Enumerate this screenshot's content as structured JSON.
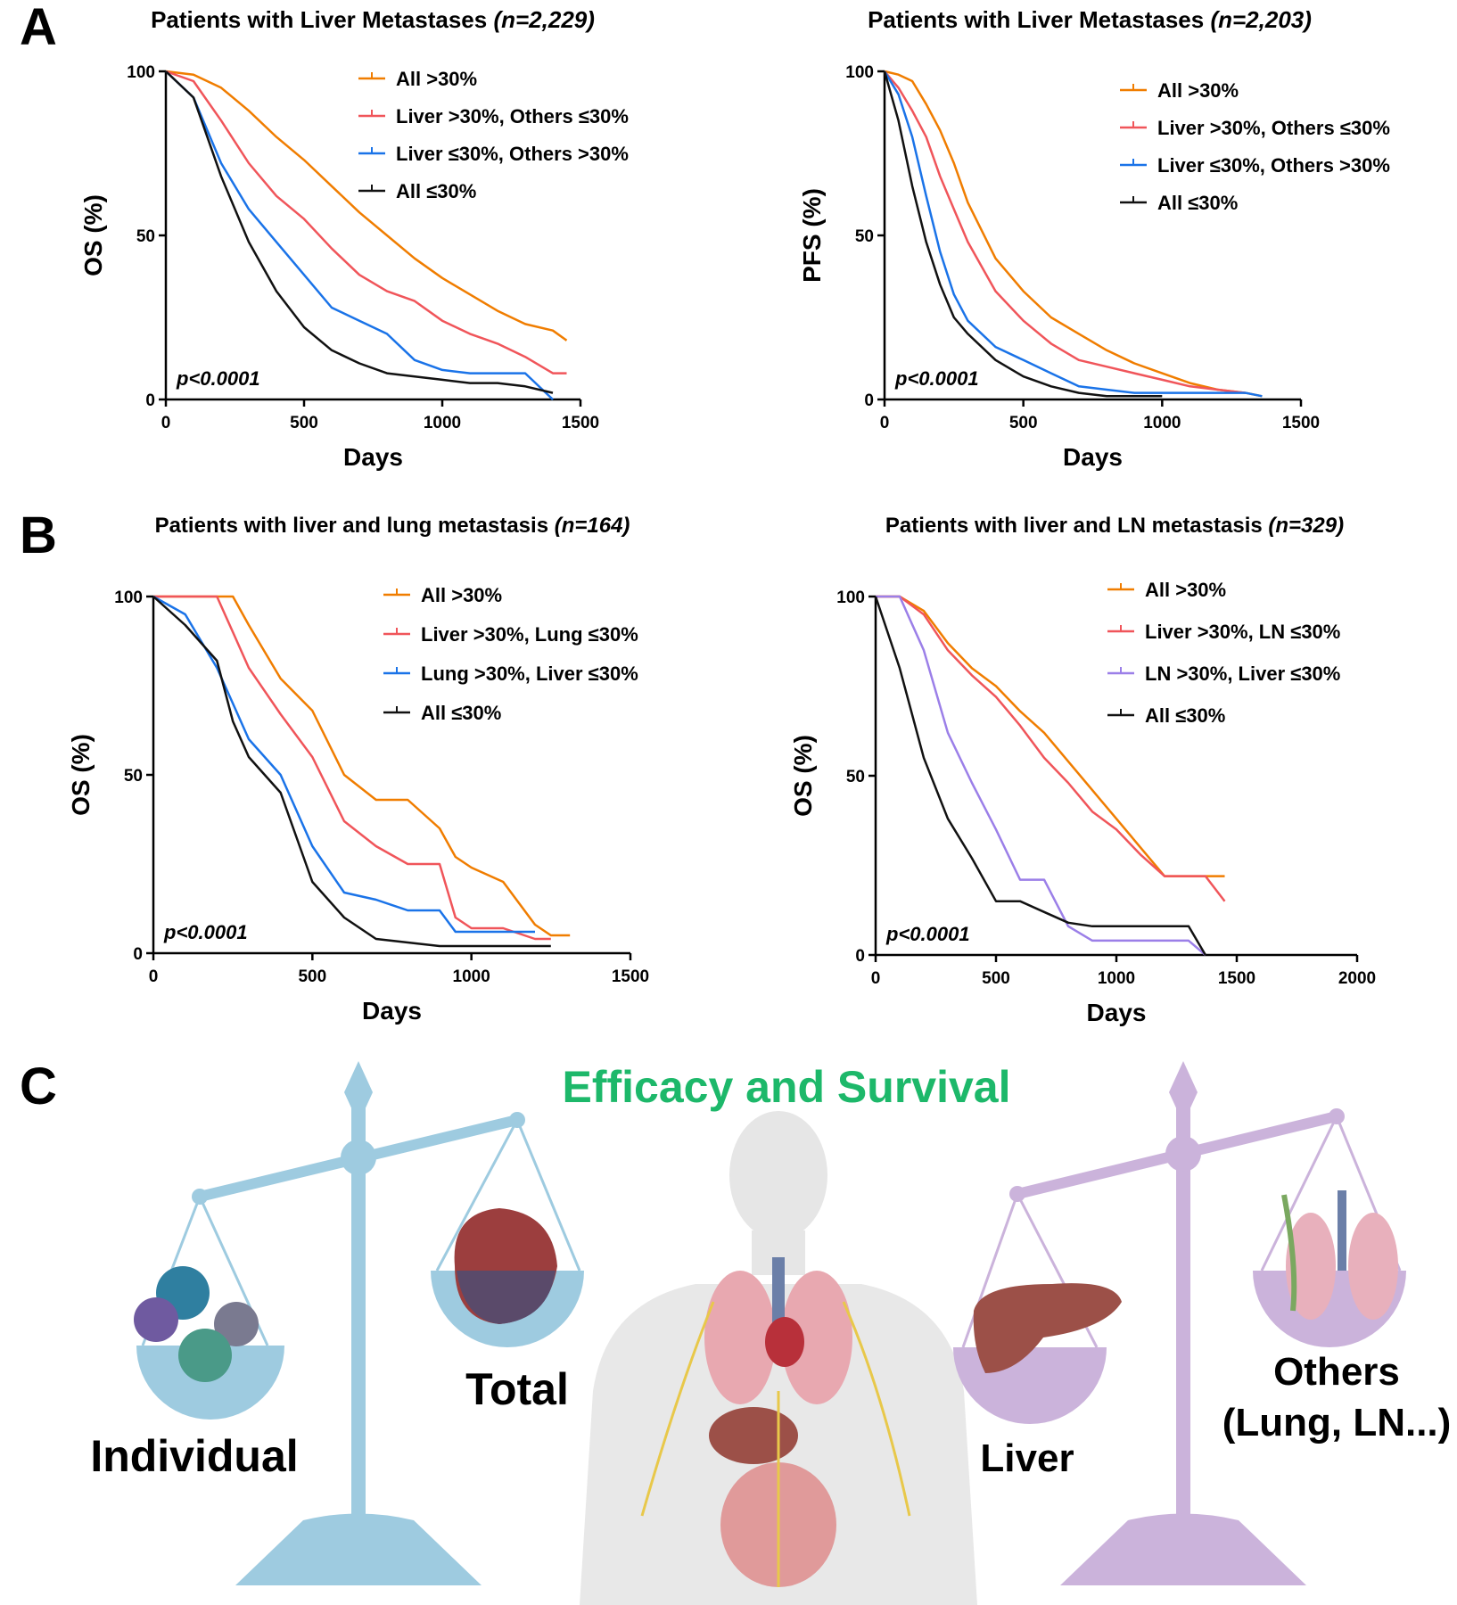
{
  "chart_data": [
    {
      "type": "line",
      "title": "Patients with Liver Metastases",
      "subtitle": "(n=2,229)",
      "xlabel": "Days",
      "ylabel": "OS (%)",
      "annotation": "p<0.0001",
      "x": [
        0,
        100,
        200,
        300,
        400,
        500,
        600,
        700,
        800,
        900,
        1000,
        1100,
        1200,
        1300,
        1400,
        1450
      ],
      "series": [
        {
          "name": "All >30%",
          "color": "#f07d00",
          "values": [
            100,
            99,
            95,
            88,
            80,
            73,
            65,
            57,
            50,
            43,
            37,
            32,
            27,
            23,
            21,
            18
          ]
        },
        {
          "name": "Liver >30%, Others ≤30%",
          "color": "#f0555a",
          "values": [
            100,
            97,
            85,
            72,
            62,
            55,
            46,
            38,
            33,
            30,
            24,
            20,
            17,
            13,
            8,
            8
          ]
        },
        {
          "name": "Liver ≤30%, Others >30%",
          "color": "#1a73e8",
          "values": [
            100,
            92,
            72,
            58,
            48,
            38,
            28,
            24,
            20,
            12,
            9,
            8,
            8,
            8,
            0,
            null
          ]
        },
        {
          "name": "All ≤30%",
          "color": "#111111",
          "values": [
            100,
            92,
            68,
            48,
            33,
            22,
            15,
            11,
            8,
            7,
            6,
            5,
            5,
            4,
            2,
            null
          ]
        }
      ],
      "xlim": [
        0,
        1500
      ],
      "ylim": [
        0,
        100
      ],
      "xticks": [
        0,
        500,
        1000,
        1500
      ],
      "yticks": [
        0,
        50,
        100
      ]
    },
    {
      "type": "line",
      "title": "Patients with Liver Metastases",
      "subtitle": "(n=2,203)",
      "xlabel": "Days",
      "ylabel": "PFS (%)",
      "annotation": "p<0.0001",
      "x": [
        0,
        50,
        100,
        150,
        200,
        250,
        300,
        400,
        500,
        600,
        700,
        800,
        900,
        1000,
        1100,
        1200,
        1300,
        1360
      ],
      "series": [
        {
          "name": "All >30%",
          "color": "#f07d00",
          "values": [
            100,
            99,
            97,
            90,
            82,
            72,
            60,
            43,
            33,
            25,
            20,
            15,
            11,
            8,
            5,
            3,
            2,
            1
          ]
        },
        {
          "name": "Liver >30%, Others ≤30%",
          "color": "#f0555a",
          "values": [
            100,
            95,
            88,
            80,
            68,
            58,
            48,
            33,
            24,
            17,
            12,
            10,
            8,
            6,
            4,
            3,
            2,
            null
          ]
        },
        {
          "name": "Liver ≤30%, Others >30%",
          "color": "#1a73e8",
          "values": [
            100,
            93,
            80,
            62,
            45,
            32,
            24,
            16,
            12,
            8,
            4,
            3,
            2,
            2,
            2,
            2,
            2,
            1
          ]
        },
        {
          "name": "All ≤30%",
          "color": "#111111",
          "values": [
            100,
            85,
            65,
            48,
            35,
            25,
            20,
            12,
            7,
            4,
            2,
            1,
            1,
            1,
            null,
            null,
            null,
            null
          ]
        }
      ],
      "xlim": [
        0,
        1500
      ],
      "ylim": [
        0,
        100
      ],
      "xticks": [
        0,
        500,
        1000,
        1500
      ],
      "yticks": [
        0,
        50,
        100
      ]
    },
    {
      "type": "line",
      "title": "Patients with liver and lung metastasis",
      "subtitle": "(n=164)",
      "xlabel": "Days",
      "ylabel": "OS (%)",
      "annotation": "p<0.0001",
      "x": [
        0,
        100,
        200,
        250,
        300,
        400,
        500,
        600,
        700,
        800,
        900,
        950,
        1000,
        1100,
        1200,
        1250,
        1310
      ],
      "series": [
        {
          "name": "All >30%",
          "color": "#f07d00",
          "values": [
            100,
            100,
            100,
            100,
            92,
            77,
            68,
            50,
            43,
            43,
            35,
            27,
            24,
            20,
            8,
            5,
            5
          ]
        },
        {
          "name": "Liver >30%, Lung ≤30%",
          "color": "#f0555a",
          "values": [
            100,
            100,
            100,
            90,
            80,
            67,
            55,
            37,
            30,
            25,
            25,
            10,
            7,
            7,
            4,
            4,
            null
          ]
        },
        {
          "name": "Lung >30%, Liver ≤30%",
          "color": "#1a73e8",
          "values": [
            100,
            95,
            80,
            70,
            60,
            50,
            30,
            17,
            15,
            12,
            12,
            6,
            6,
            6,
            6,
            null,
            null
          ]
        },
        {
          "name": "All ≤30%",
          "color": "#111111",
          "values": [
            100,
            92,
            82,
            65,
            55,
            45,
            20,
            10,
            4,
            3,
            2,
            2,
            2,
            2,
            2,
            2,
            null
          ]
        }
      ],
      "xlim": [
        0,
        1500
      ],
      "ylim": [
        0,
        100
      ],
      "xticks": [
        0,
        500,
        1000,
        1500
      ],
      "yticks": [
        0,
        50,
        100
      ]
    },
    {
      "type": "line",
      "title": "Patients with liver and LN metastasis",
      "subtitle": "(n=329)",
      "xlabel": "Days",
      "ylabel": "OS (%)",
      "annotation": "p<0.0001",
      "x": [
        0,
        100,
        200,
        300,
        400,
        500,
        600,
        700,
        800,
        900,
        1000,
        1100,
        1200,
        1300,
        1370,
        1450
      ],
      "series": [
        {
          "name": "All >30%",
          "color": "#f07d00",
          "values": [
            100,
            100,
            96,
            87,
            80,
            75,
            68,
            62,
            54,
            46,
            38,
            30,
            22,
            22,
            22,
            22
          ]
        },
        {
          "name": "Liver >30%, LN ≤30%",
          "color": "#f0555a",
          "values": [
            100,
            100,
            95,
            85,
            78,
            72,
            64,
            55,
            48,
            40,
            35,
            28,
            22,
            22,
            22,
            15
          ]
        },
        {
          "name": "LN  >30%, Liver ≤30%",
          "color": "#9b7fe8",
          "values": [
            100,
            100,
            85,
            62,
            48,
            35,
            21,
            21,
            8,
            4,
            4,
            4,
            4,
            4,
            0,
            null
          ]
        },
        {
          "name": "All ≤30%",
          "color": "#111111",
          "values": [
            100,
            80,
            55,
            38,
            27,
            15,
            15,
            12,
            9,
            8,
            8,
            8,
            8,
            8,
            0,
            null
          ]
        }
      ],
      "xlim": [
        0,
        2000
      ],
      "ylim": [
        0,
        100
      ],
      "xticks": [
        0,
        500,
        1000,
        1500,
        2000
      ],
      "yticks": [
        0,
        50,
        100
      ]
    }
  ],
  "panel_labels": [
    "A",
    "B",
    "C"
  ],
  "panel_c": {
    "title": "Efficacy and Survival",
    "left_labels": [
      "Individual",
      "Total"
    ],
    "right_labels": [
      "Liver",
      "Others",
      "(Lung, LN...)"
    ]
  }
}
